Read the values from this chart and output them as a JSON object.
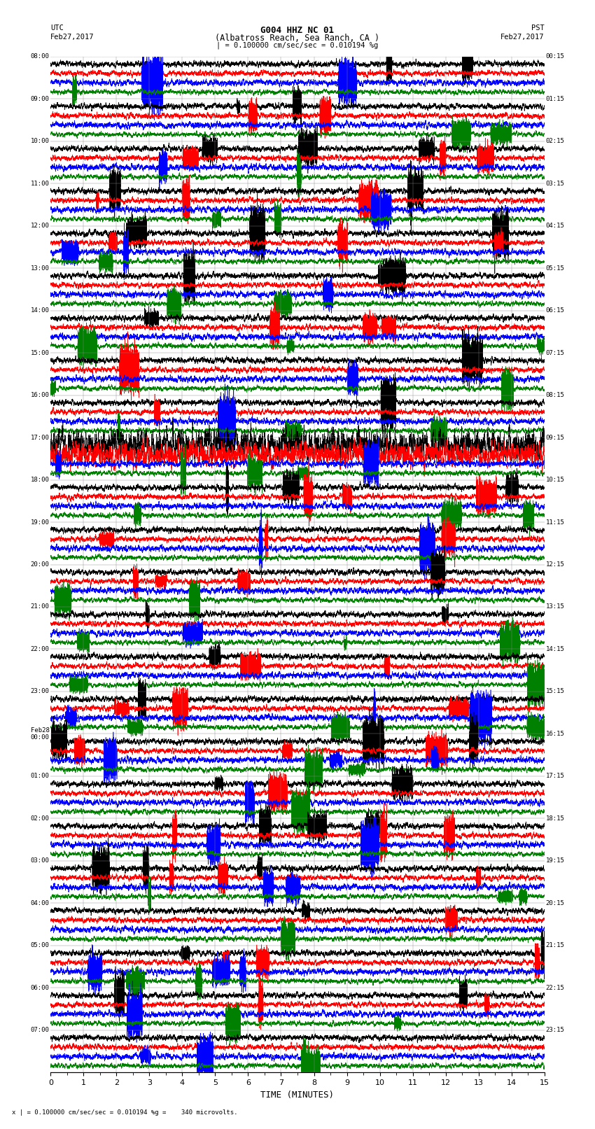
{
  "title_line1": "G004 HHZ NC 01",
  "title_line2": "(Albatross Reach, Sea Ranch, CA )",
  "scale_text": "| = 0.100000 cm/sec/sec = 0.010194 %g",
  "bottom_scale_text": "x | = 0.100000 cm/sec/sec = 0.010194 %g =    340 microvolts.",
  "utc_label": "UTC",
  "utc_date": "Feb27,2017",
  "pst_label": "PST",
  "pst_date": "Feb27,2017",
  "xlabel": "TIME (MINUTES)",
  "left_times": [
    "08:00",
    "09:00",
    "10:00",
    "11:00",
    "12:00",
    "13:00",
    "14:00",
    "15:00",
    "16:00",
    "17:00",
    "18:00",
    "19:00",
    "20:00",
    "21:00",
    "22:00",
    "23:00",
    "Feb28\n00:00",
    "01:00",
    "02:00",
    "03:00",
    "04:00",
    "05:00",
    "06:00",
    "07:00"
  ],
  "right_times": [
    "00:15",
    "01:15",
    "02:15",
    "03:15",
    "04:15",
    "05:15",
    "06:15",
    "07:15",
    "08:15",
    "09:15",
    "10:15",
    "11:15",
    "12:15",
    "13:15",
    "14:15",
    "15:15",
    "16:15",
    "17:15",
    "18:15",
    "19:15",
    "20:15",
    "21:15",
    "22:15",
    "23:15"
  ],
  "colors": [
    "black",
    "red",
    "blue",
    "green"
  ],
  "num_rows": 24,
  "traces_per_row": 4,
  "minutes": 15,
  "sample_rate": 50,
  "background_color": "white",
  "line_width": 0.45,
  "figsize": [
    8.5,
    16.13
  ],
  "dpi": 100,
  "grid_color": "#888888",
  "grid_lw": 0.3
}
